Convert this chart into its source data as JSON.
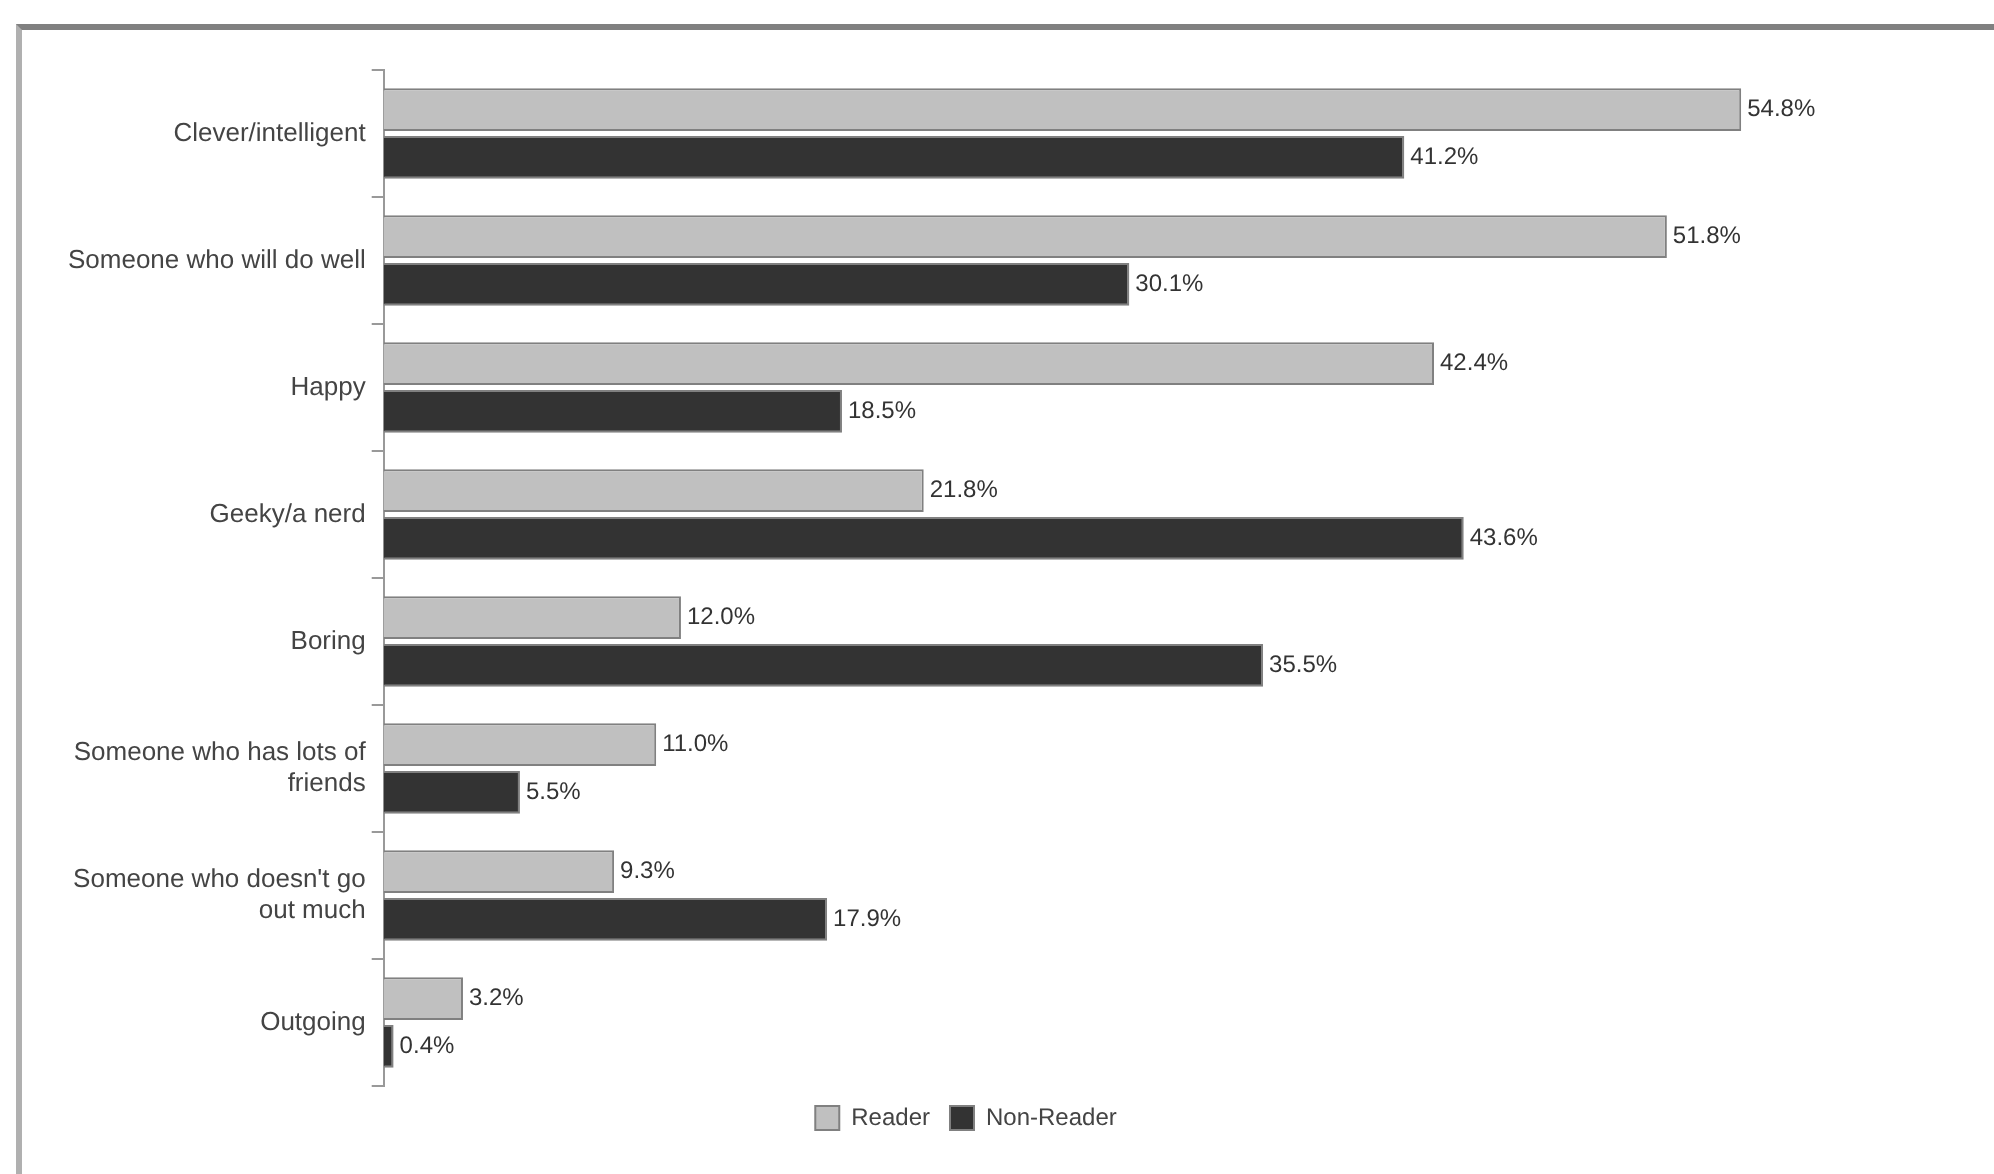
{
  "chart_data": {
    "type": "bar",
    "orientation": "horizontal",
    "categories": [
      "Clever/intelligent",
      "Someone who will do well",
      "Happy",
      "Geeky/a nerd",
      "Boring",
      "Someone who has lots of friends",
      "Someone who doesn't go out much",
      "Outgoing"
    ],
    "series": [
      {
        "name": "Reader",
        "color": "#c0c0c0",
        "values": [
          54.8,
          51.8,
          42.4,
          21.8,
          12.0,
          11.0,
          9.3,
          3.2
        ],
        "value_labels": [
          "54.8%",
          "51.8%",
          "42.4%",
          "21.8%",
          "12.0%",
          "11.0%",
          "9.3%",
          "3.2%"
        ]
      },
      {
        "name": "Non-Reader",
        "color": "#333333",
        "values": [
          41.2,
          30.1,
          18.5,
          43.6,
          35.5,
          5.5,
          17.9,
          0.4
        ],
        "value_labels": [
          "41.2%",
          "30.1%",
          "18.5%",
          "43.6%",
          "35.5%",
          "5.5%",
          "17.9%",
          "0.4%"
        ]
      }
    ],
    "tick_labels": "y",
    "legend": "bottom"
  }
}
